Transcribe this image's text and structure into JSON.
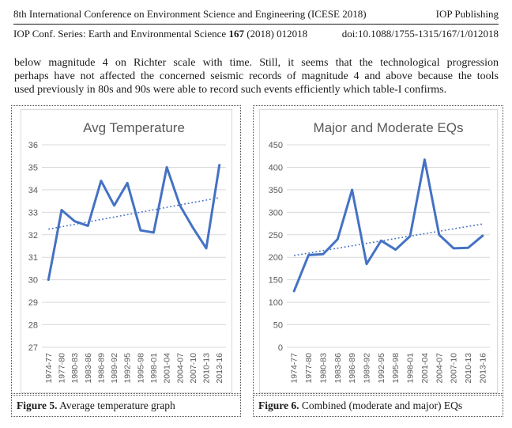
{
  "header": {
    "conference": "8th International Conference on Environment Science and Engineering (ICESE 2018)",
    "publisher": "IOP Publishing",
    "series_prefix": "IOP Conf. Series: Earth and Environmental Science ",
    "series_volume": "167",
    "series_suffix": " (2018) 012018",
    "doi": "doi:10.1088/1755-1315/167/1/012018"
  },
  "paragraph": {
    "lines": [
      "below magnitude 4 on Richter scale with time.  Still, it seems that the technological progression",
      "perhaps  have not affected the concerned seismic records of magnitude 4 and above because the tools",
      "used previously in 80s and 90s were able to record such events efficiently which table-I confirms."
    ]
  },
  "figures": [
    {
      "label": "Figure 5.",
      "text": " Average temperature graph"
    },
    {
      "label": "Figure 6.",
      "text": " Combined (moderate and major) EQs"
    }
  ],
  "chart_data": [
    {
      "type": "line",
      "title": "Avg Temperature",
      "categories": [
        "1974-77",
        "1977-80",
        "1980-83",
        "1983-86",
        "1986-89",
        "1989-92",
        "1992-95",
        "1995-98",
        "1998-01",
        "2001-04",
        "2004-07",
        "2007-10",
        "2010-13",
        "2013-16"
      ],
      "series": [
        {
          "name": "avg-temperature",
          "values": [
            30.0,
            33.1,
            32.6,
            32.4,
            34.4,
            33.3,
            34.3,
            32.2,
            32.1,
            35.0,
            33.3,
            32.3,
            31.4,
            35.1
          ]
        },
        {
          "name": "linear-trendline",
          "style": "dotted",
          "endpoints": [
            32.25,
            33.65
          ]
        }
      ],
      "xlabel": "",
      "ylabel": "",
      "ylim": [
        27,
        36
      ],
      "ytick_step": 1,
      "grid": true,
      "legend": "none",
      "colors": {
        "line": "#4472C4",
        "grid": "#d9d9d9",
        "text": "#595959"
      }
    },
    {
      "type": "line",
      "title": "Major and Moderate EQs",
      "categories": [
        "1974-77",
        "1977-80",
        "1980-83",
        "1983-86",
        "1986-89",
        "1989-92",
        "1992-95",
        "1995-98",
        "1998-01",
        "2001-04",
        "2004-07",
        "2007-10",
        "2010-13",
        "2013-16"
      ],
      "series": [
        {
          "name": "eq-count",
          "values": [
            125,
            205,
            207,
            240,
            350,
            185,
            237,
            217,
            247,
            417,
            250,
            220,
            221,
            248
          ]
        },
        {
          "name": "linear-trendline",
          "style": "dotted",
          "endpoints": [
            204,
            274
          ]
        }
      ],
      "xlabel": "",
      "ylabel": "",
      "ylim": [
        0,
        450
      ],
      "ytick_step": 50,
      "grid": true,
      "legend": "none",
      "colors": {
        "line": "#4472C4",
        "grid": "#d9d9d9",
        "text": "#595959"
      }
    }
  ]
}
